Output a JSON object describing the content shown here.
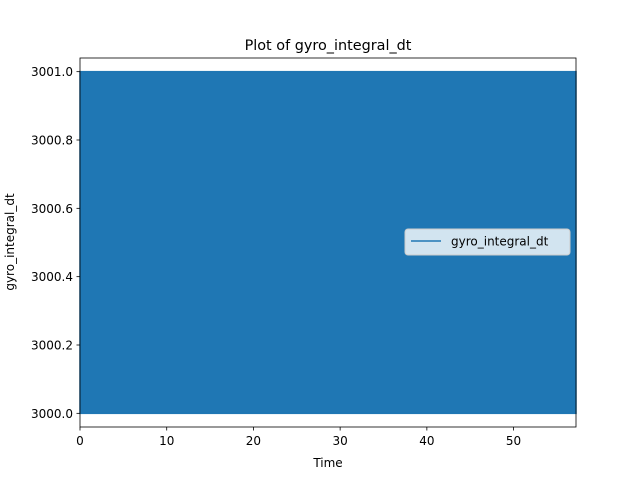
{
  "chart_data": {
    "type": "line",
    "title": "Plot of gyro_integral_dt",
    "xlabel": "Time",
    "ylabel": "gyro_integral_dt",
    "xlim": [
      0,
      57.2
    ],
    "ylim": [
      2999.96,
      3001.04
    ],
    "x_ticks": [
      0,
      10,
      20,
      30,
      40,
      50
    ],
    "x_tick_labels": [
      "0",
      "10",
      "20",
      "30",
      "40",
      "50"
    ],
    "y_ticks": [
      3000.0,
      3000.2,
      3000.4,
      3000.6,
      3000.8,
      3001.0
    ],
    "y_tick_labels": [
      "3000.0",
      "3000.2",
      "3000.4",
      "3000.6",
      "3000.8",
      "3001.0"
    ],
    "grid": false,
    "legend": {
      "placement": "center-right",
      "entries": [
        "gyro_integral_dt"
      ]
    },
    "series": [
      {
        "name": "gyro_integral_dt",
        "color": "#1f77b4",
        "pattern": "alternating",
        "x_range": [
          0,
          57.2
        ],
        "values_alternate_between": [
          3000.0,
          3001.0
        ]
      }
    ]
  }
}
